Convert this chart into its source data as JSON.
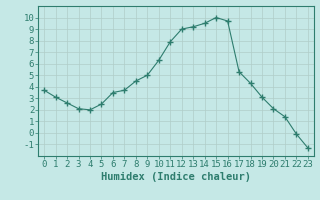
{
  "x": [
    0,
    1,
    2,
    3,
    4,
    5,
    6,
    7,
    8,
    9,
    10,
    11,
    12,
    13,
    14,
    15,
    16,
    17,
    18,
    19,
    20,
    21,
    22,
    23
  ],
  "y": [
    3.7,
    3.1,
    2.6,
    2.1,
    2.0,
    2.5,
    3.5,
    3.7,
    4.5,
    5.0,
    6.3,
    7.9,
    9.0,
    9.2,
    9.5,
    10.0,
    9.7,
    5.3,
    4.3,
    3.1,
    2.1,
    1.4,
    -0.1,
    -1.3
  ],
  "line_color": "#2e7d6e",
  "marker": "+",
  "marker_size": 4,
  "bg_color": "#c5e8e6",
  "grid_color": "#b0cec9",
  "xlabel": "Humidex (Indice chaleur)",
  "xlim": [
    -0.5,
    23.5
  ],
  "ylim": [
    -2,
    11
  ],
  "yticks": [
    -1,
    0,
    1,
    2,
    3,
    4,
    5,
    6,
    7,
    8,
    9,
    10
  ],
  "xticks": [
    0,
    1,
    2,
    3,
    4,
    5,
    6,
    7,
    8,
    9,
    10,
    11,
    12,
    13,
    14,
    15,
    16,
    17,
    18,
    19,
    20,
    21,
    22,
    23
  ],
  "xlabel_fontsize": 7.5,
  "tick_fontsize": 6.5
}
